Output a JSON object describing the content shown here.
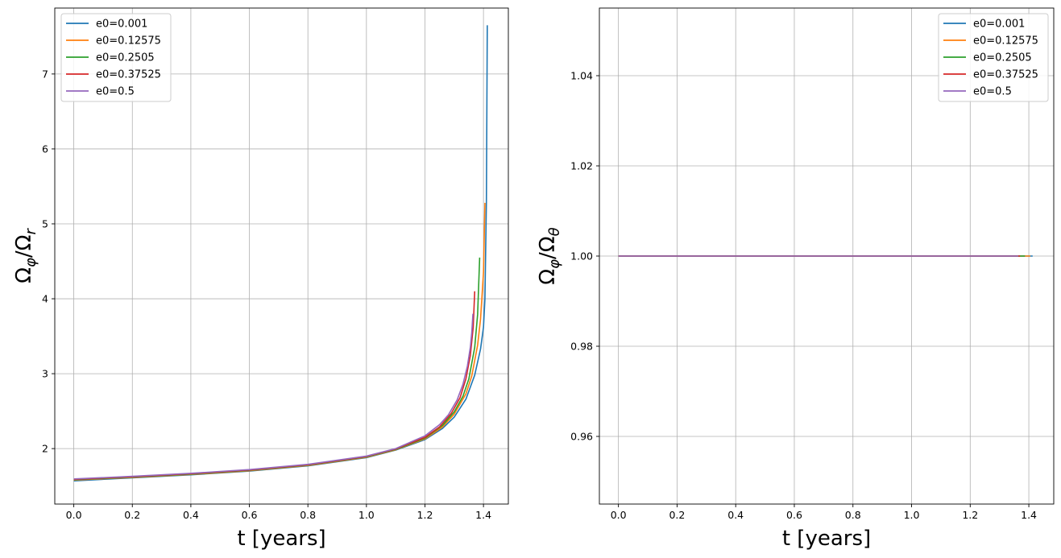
{
  "chart_data": [
    {
      "type": "line",
      "xlabel": "t [years]",
      "ylabel": "Ωφ/Ωr",
      "xlim": [
        -0.065,
        1.485
      ],
      "ylim": [
        1.26,
        7.88
      ],
      "xticks": [
        0.0,
        0.2,
        0.4,
        0.6,
        0.8,
        1.0,
        1.2,
        1.4
      ],
      "xtick_labels": [
        "0.0",
        "0.2",
        "0.4",
        "0.6",
        "0.8",
        "1.0",
        "1.2",
        "1.4"
      ],
      "yticks": [
        2,
        3,
        4,
        5,
        6,
        7
      ],
      "ytick_labels": [
        "2",
        "3",
        "4",
        "5",
        "6",
        "7"
      ],
      "grid": true,
      "legend_position": "top-left",
      "series": [
        {
          "name": "e0=0.001",
          "color": "#1f77b4",
          "x": [
            0.0,
            0.2,
            0.4,
            0.6,
            0.8,
            1.0,
            1.1,
            1.2,
            1.26,
            1.3,
            1.34,
            1.37,
            1.39,
            1.4,
            1.405,
            1.41,
            1.413
          ],
          "y": [
            1.57,
            1.61,
            1.65,
            1.7,
            1.77,
            1.88,
            1.98,
            2.12,
            2.27,
            2.42,
            2.66,
            2.98,
            3.33,
            3.62,
            4.0,
            5.3,
            7.65
          ]
        },
        {
          "name": "e0=0.12575",
          "color": "#ff7f0e",
          "x": [
            0.0,
            0.2,
            0.4,
            0.6,
            0.8,
            1.0,
            1.1,
            1.2,
            1.26,
            1.3,
            1.34,
            1.36,
            1.38,
            1.39,
            1.4,
            1.405
          ],
          "y": [
            1.58,
            1.615,
            1.655,
            1.705,
            1.775,
            1.885,
            1.985,
            2.13,
            2.29,
            2.46,
            2.73,
            2.97,
            3.38,
            3.73,
            4.35,
            5.28
          ]
        },
        {
          "name": "e0=0.2505",
          "color": "#2ca02c",
          "x": [
            0.0,
            0.2,
            0.4,
            0.6,
            0.8,
            1.0,
            1.1,
            1.2,
            1.26,
            1.3,
            1.33,
            1.35,
            1.37,
            1.38,
            1.387
          ],
          "y": [
            1.585,
            1.62,
            1.66,
            1.71,
            1.78,
            1.89,
            1.99,
            2.14,
            2.31,
            2.49,
            2.7,
            2.93,
            3.35,
            3.79,
            4.55
          ]
        },
        {
          "name": "e0=0.37525",
          "color": "#d62728",
          "x": [
            0.0,
            0.2,
            0.4,
            0.6,
            0.8,
            1.0,
            1.1,
            1.2,
            1.25,
            1.29,
            1.32,
            1.34,
            1.355,
            1.365,
            1.37
          ],
          "y": [
            1.59,
            1.625,
            1.665,
            1.715,
            1.785,
            1.895,
            1.995,
            2.15,
            2.29,
            2.47,
            2.68,
            2.93,
            3.24,
            3.62,
            4.1
          ]
        },
        {
          "name": "e0=0.5",
          "color": "#9467bd",
          "x": [
            0.0,
            0.2,
            0.4,
            0.6,
            0.8,
            1.0,
            1.1,
            1.2,
            1.25,
            1.28,
            1.31,
            1.33,
            1.345,
            1.355,
            1.36,
            1.364
          ],
          "y": [
            1.595,
            1.63,
            1.67,
            1.72,
            1.79,
            1.9,
            2.0,
            2.17,
            2.32,
            2.45,
            2.65,
            2.86,
            3.1,
            3.35,
            3.55,
            3.8
          ]
        }
      ]
    },
    {
      "type": "line",
      "xlabel": "t [years]",
      "ylabel": "Ωφ/Ωθ",
      "xlim": [
        -0.065,
        1.485
      ],
      "ylim": [
        0.945,
        1.055
      ],
      "xticks": [
        0.0,
        0.2,
        0.4,
        0.6,
        0.8,
        1.0,
        1.2,
        1.4
      ],
      "xtick_labels": [
        "0.0",
        "0.2",
        "0.4",
        "0.6",
        "0.8",
        "1.0",
        "1.2",
        "1.4"
      ],
      "yticks": [
        0.96,
        0.98,
        1.0,
        1.02,
        1.04
      ],
      "ytick_labels": [
        "0.96",
        "0.98",
        "1.00",
        "1.02",
        "1.04"
      ],
      "grid": true,
      "legend_position": "top-right",
      "series": [
        {
          "name": "e0=0.001",
          "color": "#1f77b4",
          "x": [
            0.0,
            1.413
          ],
          "y": [
            1.0,
            1.0
          ]
        },
        {
          "name": "e0=0.12575",
          "color": "#ff7f0e",
          "x": [
            0.0,
            1.405
          ],
          "y": [
            1.0,
            1.0
          ]
        },
        {
          "name": "e0=0.2505",
          "color": "#2ca02c",
          "x": [
            0.0,
            1.387
          ],
          "y": [
            1.0,
            1.0
          ]
        },
        {
          "name": "e0=0.37525",
          "color": "#d62728",
          "x": [
            0.0,
            1.37
          ],
          "y": [
            1.0,
            1.0
          ]
        },
        {
          "name": "e0=0.5",
          "color": "#9467bd",
          "x": [
            0.0,
            1.364
          ],
          "y": [
            1.0,
            1.0
          ]
        }
      ]
    }
  ]
}
